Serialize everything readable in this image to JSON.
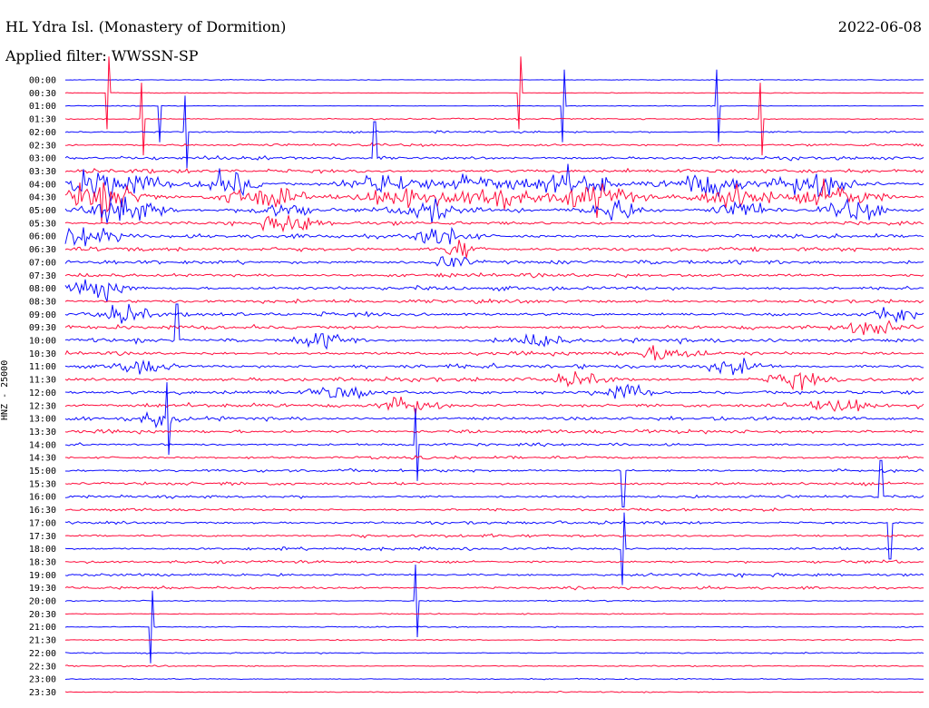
{
  "header": {
    "title": "HL Ydra Isl. (Monastery of Dormition)",
    "date": "2022-06-08",
    "filter_label": "Applied filter: WWSSN-SP"
  },
  "chart_data": {
    "type": "helicorder",
    "title": "HL Ydra Isl. (Monastery of Dormition)",
    "date": "2022-06-08",
    "filter": "WWSSN-SP",
    "ylabel": "HNZ - 25000",
    "row_interval_minutes": 30,
    "row_labels": [
      "00:00",
      "00:30",
      "01:00",
      "01:30",
      "02:00",
      "02:30",
      "03:00",
      "03:30",
      "04:00",
      "04:30",
      "05:00",
      "05:30",
      "06:00",
      "06:30",
      "07:00",
      "07:30",
      "08:00",
      "08:30",
      "09:00",
      "09:30",
      "10:00",
      "10:30",
      "11:00",
      "11:30",
      "12:00",
      "12:30",
      "13:00",
      "13:30",
      "14:00",
      "14:30",
      "15:00",
      "15:30",
      "16:00",
      "16:30",
      "17:00",
      "17:30",
      "18:00",
      "18:30",
      "19:00",
      "19:30",
      "20:00",
      "20:30",
      "21:00",
      "21:30",
      "22:00",
      "22:30",
      "23:00",
      "23:30"
    ],
    "colors": [
      "#0000ff",
      "#ff0033"
    ],
    "grid": false
  }
}
